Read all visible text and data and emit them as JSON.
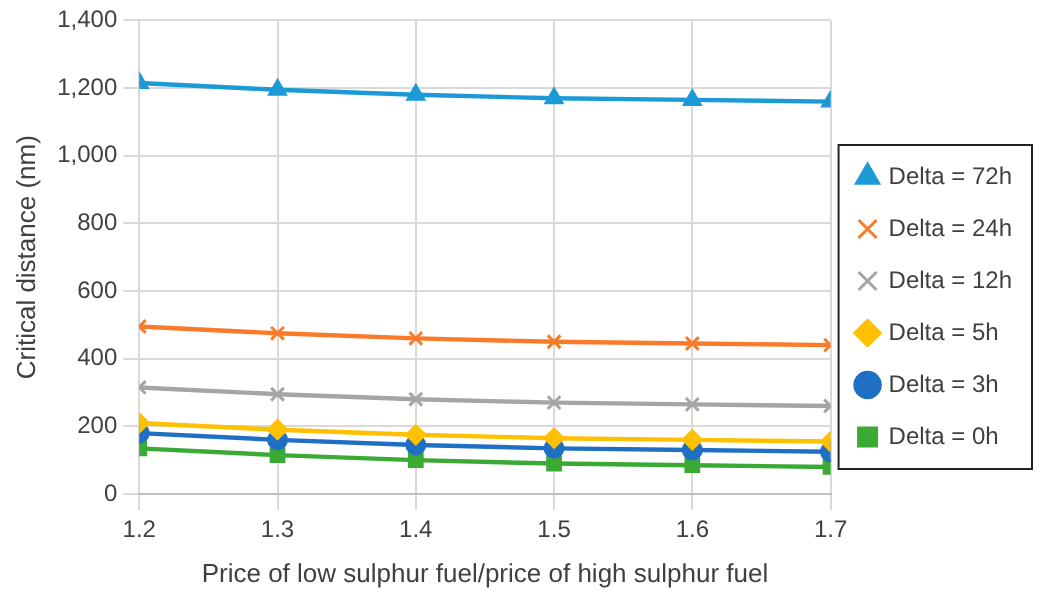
{
  "chart_data": {
    "type": "line",
    "xlabel": "Price of low sulphur fuel/price of high sulphur fuel",
    "ylabel": "Critical distance (nm)",
    "x": [
      1.2,
      1.3,
      1.4,
      1.5,
      1.6,
      1.7
    ],
    "xlim": [
      1.2,
      1.7
    ],
    "xticks": [
      1.2,
      1.3,
      1.4,
      1.5,
      1.6,
      1.7
    ],
    "ylim": [
      0,
      1400
    ],
    "yticks": [
      0,
      {
        "value": 200,
        "label": "200"
      },
      {
        "value": 400,
        "label": "400"
      },
      {
        "value": 600,
        "label": "600"
      },
      {
        "value": 800,
        "label": "800"
      },
      {
        "value": 1000,
        "label": "1,000"
      },
      {
        "value": 1200,
        "label": "1,200"
      },
      {
        "value": 1400,
        "label": "1,400"
      }
    ],
    "grid": true,
    "legend": "right",
    "line_style": "solid",
    "series": [
      {
        "name": "Delta = 72h",
        "color": "#1b9ad6",
        "marker": "triangle",
        "values": [
          1215,
          1195,
          1180,
          1170,
          1165,
          1160
        ]
      },
      {
        "name": "Delta = 24h",
        "color": "#f97b2a",
        "marker": "cross",
        "values": [
          495,
          475,
          460,
          450,
          445,
          440
        ]
      },
      {
        "name": "Delta = 12h",
        "color": "#a5a5a5",
        "marker": "cross",
        "values": [
          315,
          295,
          280,
          270,
          265,
          260
        ]
      },
      {
        "name": "Delta = 5h",
        "color": "#ffc000",
        "marker": "diamond",
        "values": [
          210,
          190,
          175,
          165,
          160,
          155
        ]
      },
      {
        "name": "Delta = 3h",
        "color": "#1f6fc5",
        "marker": "circle",
        "values": [
          180,
          160,
          145,
          135,
          130,
          125
        ]
      },
      {
        "name": "Delta = 0h",
        "color": "#3aaa35",
        "marker": "square",
        "values": [
          135,
          115,
          100,
          90,
          85,
          80
        ]
      }
    ]
  }
}
